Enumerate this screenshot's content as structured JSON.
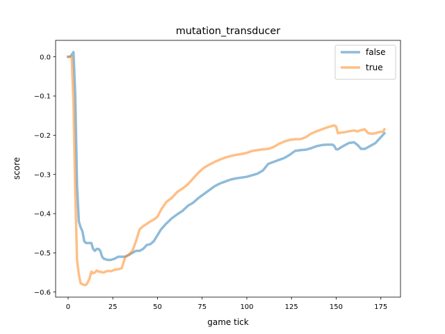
{
  "chart_data": {
    "type": "line",
    "title": "mutation_transducer",
    "xlabel": "game tick",
    "ylabel": "score",
    "xlim": [
      -7,
      186
    ],
    "ylim": [
      -0.613,
      0.042
    ],
    "xticks": [
      0,
      25,
      50,
      75,
      100,
      125,
      150,
      175
    ],
    "xtick_labels": [
      "0",
      "25",
      "50",
      "75",
      "100",
      "125",
      "150",
      "175"
    ],
    "yticks": [
      0.0,
      -0.1,
      -0.2,
      -0.3,
      -0.4,
      -0.5,
      -0.6
    ],
    "ytick_labels": [
      "0.0",
      "−0.1",
      "−0.2",
      "−0.3",
      "−0.4",
      "−0.5",
      "−0.6"
    ],
    "grid": false,
    "legend_position": "top-right",
    "series": [
      {
        "name": "false",
        "color": "#1f77b4",
        "x": [
          0,
          1,
          2,
          3,
          4,
          5,
          6,
          7,
          8,
          9,
          10,
          11,
          12,
          13,
          14,
          15,
          16,
          17,
          18,
          19,
          20,
          22,
          24,
          26,
          28,
          30,
          32,
          34,
          36,
          38,
          40,
          42,
          44,
          46,
          48,
          50,
          52,
          55,
          58,
          61,
          64,
          67,
          70,
          73,
          76,
          79,
          82,
          85,
          88,
          91,
          94,
          97,
          100,
          103,
          106,
          109,
          112,
          115,
          118,
          121,
          124,
          127,
          130,
          133,
          136,
          139,
          142,
          145,
          148,
          149,
          150,
          151,
          153,
          155,
          157,
          160,
          162,
          164,
          166,
          168,
          170,
          172,
          174,
          176,
          177
        ],
        "y": [
          0.0,
          0.0,
          0.005,
          0.012,
          -0.1,
          -0.33,
          -0.42,
          -0.435,
          -0.445,
          -0.47,
          -0.475,
          -0.475,
          -0.475,
          -0.475,
          -0.49,
          -0.495,
          -0.49,
          -0.49,
          -0.495,
          -0.51,
          -0.515,
          -0.518,
          -0.518,
          -0.515,
          -0.51,
          -0.51,
          -0.51,
          -0.505,
          -0.5,
          -0.495,
          -0.495,
          -0.49,
          -0.48,
          -0.478,
          -0.47,
          -0.455,
          -0.44,
          -0.425,
          -0.412,
          -0.402,
          -0.393,
          -0.38,
          -0.372,
          -0.36,
          -0.35,
          -0.34,
          -0.33,
          -0.323,
          -0.318,
          -0.313,
          -0.31,
          -0.308,
          -0.306,
          -0.302,
          -0.298,
          -0.29,
          -0.273,
          -0.268,
          -0.263,
          -0.258,
          -0.25,
          -0.24,
          -0.238,
          -0.237,
          -0.233,
          -0.228,
          -0.225,
          -0.224,
          -0.224,
          -0.228,
          -0.236,
          -0.236,
          -0.23,
          -0.225,
          -0.22,
          -0.218,
          -0.225,
          -0.235,
          -0.235,
          -0.23,
          -0.225,
          -0.22,
          -0.21,
          -0.2,
          -0.195
        ]
      },
      {
        "name": "true",
        "color": "#ff7f0e",
        "x": [
          0,
          1,
          2,
          3,
          4,
          5,
          6,
          7,
          8,
          9,
          10,
          11,
          12,
          13,
          14,
          15,
          16,
          17,
          18,
          19,
          20,
          22,
          24,
          26,
          28,
          30,
          32,
          34,
          36,
          38,
          40,
          42,
          44,
          46,
          48,
          50,
          52,
          55,
          58,
          61,
          64,
          67,
          70,
          73,
          76,
          79,
          82,
          85,
          88,
          91,
          94,
          97,
          100,
          103,
          106,
          109,
          112,
          115,
          118,
          121,
          124,
          127,
          130,
          133,
          136,
          139,
          142,
          145,
          148,
          149,
          150,
          151,
          153,
          155,
          157,
          160,
          162,
          164,
          166,
          168,
          170,
          172,
          174,
          176,
          177
        ],
        "y": [
          0.0,
          0.0,
          0.0,
          -0.12,
          -0.35,
          -0.52,
          -0.555,
          -0.578,
          -0.58,
          -0.582,
          -0.582,
          -0.575,
          -0.565,
          -0.548,
          -0.552,
          -0.55,
          -0.545,
          -0.548,
          -0.548,
          -0.55,
          -0.55,
          -0.546,
          -0.547,
          -0.543,
          -0.542,
          -0.539,
          -0.51,
          -0.505,
          -0.495,
          -0.47,
          -0.44,
          -0.432,
          -0.426,
          -0.42,
          -0.415,
          -0.408,
          -0.39,
          -0.37,
          -0.36,
          -0.345,
          -0.336,
          -0.325,
          -0.31,
          -0.295,
          -0.283,
          -0.275,
          -0.268,
          -0.262,
          -0.257,
          -0.253,
          -0.25,
          -0.248,
          -0.245,
          -0.24,
          -0.238,
          -0.236,
          -0.235,
          -0.23,
          -0.222,
          -0.216,
          -0.212,
          -0.21,
          -0.21,
          -0.205,
          -0.196,
          -0.19,
          -0.185,
          -0.18,
          -0.176,
          -0.175,
          -0.178,
          -0.195,
          -0.193,
          -0.192,
          -0.19,
          -0.188,
          -0.19,
          -0.187,
          -0.185,
          -0.195,
          -0.196,
          -0.195,
          -0.192,
          -0.191,
          -0.185
        ]
      }
    ]
  }
}
